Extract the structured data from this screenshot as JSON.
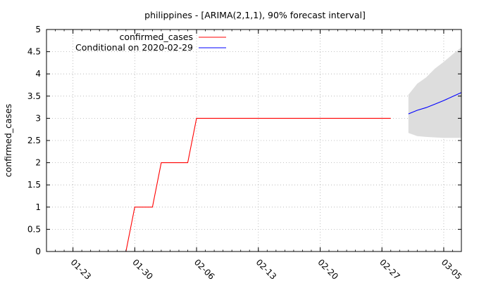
{
  "chart_data": {
    "type": "line",
    "title": "philippines -  [ARIMA(2,1,1), 90% forecast interval]",
    "xlabel": "",
    "ylabel": "confirmed_cases",
    "ylim": [
      0,
      5
    ],
    "xlim": [
      "2020-01-20",
      "2020-03-07"
    ],
    "grid": true,
    "legend_position": "top-left",
    "yticks": [
      "0",
      "0.5",
      "1",
      "1.5",
      "2",
      "2.5",
      "3",
      "3.5",
      "4",
      "4.5",
      "5"
    ],
    "xticks": [
      {
        "date": "2020-01-23",
        "label": "01-23"
      },
      {
        "date": "2020-01-30",
        "label": "01-30"
      },
      {
        "date": "2020-02-06",
        "label": "02-06"
      },
      {
        "date": "2020-02-13",
        "label": "02-13"
      },
      {
        "date": "2020-02-20",
        "label": "02-20"
      },
      {
        "date": "2020-02-27",
        "label": "02-27"
      },
      {
        "date": "2020-03-05",
        "label": "03-05"
      }
    ],
    "series": [
      {
        "name": "confirmed_cases",
        "color": "#ff0000",
        "step": true,
        "points": [
          {
            "x": "2020-01-28",
            "y": 0
          },
          {
            "x": "2020-01-29",
            "y": 0
          },
          {
            "x": "2020-01-30",
            "y": 1
          },
          {
            "x": "2020-01-31",
            "y": 1
          },
          {
            "x": "2020-02-01",
            "y": 1
          },
          {
            "x": "2020-02-02",
            "y": 2
          },
          {
            "x": "2020-02-03",
            "y": 2
          },
          {
            "x": "2020-02-04",
            "y": 2
          },
          {
            "x": "2020-02-05",
            "y": 2
          },
          {
            "x": "2020-02-06",
            "y": 3
          },
          {
            "x": "2020-02-28",
            "y": 3
          }
        ]
      },
      {
        "name": "Conditional on 2020-02-29",
        "color": "#0000ff",
        "step": false,
        "points": [
          {
            "x": "2020-03-01",
            "y": 3.1
          },
          {
            "x": "2020-03-02",
            "y": 3.18
          },
          {
            "x": "2020-03-03",
            "y": 3.24
          },
          {
            "x": "2020-03-04",
            "y": 3.32
          },
          {
            "x": "2020-03-05",
            "y": 3.4
          },
          {
            "x": "2020-03-06",
            "y": 3.49
          },
          {
            "x": "2020-03-07",
            "y": 3.58
          }
        ]
      }
    ],
    "interval": {
      "color": "#dddddd",
      "upper": [
        {
          "x": "2020-03-01",
          "y": 3.53
        },
        {
          "x": "2020-03-02",
          "y": 3.78
        },
        {
          "x": "2020-03-03",
          "y": 3.92
        },
        {
          "x": "2020-03-04",
          "y": 4.12
        },
        {
          "x": "2020-03-05",
          "y": 4.27
        },
        {
          "x": "2020-03-06",
          "y": 4.44
        },
        {
          "x": "2020-03-07",
          "y": 4.6
        }
      ],
      "lower": [
        {
          "x": "2020-03-01",
          "y": 2.67
        },
        {
          "x": "2020-03-02",
          "y": 2.6
        },
        {
          "x": "2020-03-03",
          "y": 2.58
        },
        {
          "x": "2020-03-04",
          "y": 2.57
        },
        {
          "x": "2020-03-05",
          "y": 2.56
        },
        {
          "x": "2020-03-06",
          "y": 2.56
        },
        {
          "x": "2020-03-07",
          "y": 2.56
        }
      ]
    }
  }
}
